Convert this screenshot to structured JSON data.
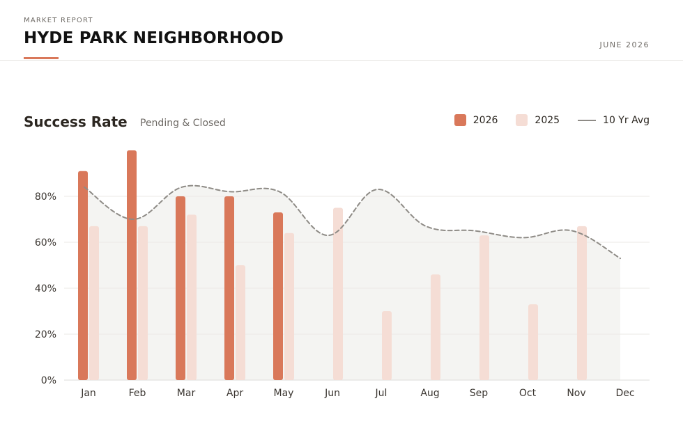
{
  "header": {
    "kicker": "MARKET REPORT",
    "title": "HYDE PARK NEIGHBORHOOD",
    "date": "JUNE 2026"
  },
  "chart_data": {
    "type": "bar",
    "title": "Success Rate",
    "subtitle": "Pending & Closed",
    "categories": [
      "Jan",
      "Feb",
      "Mar",
      "Apr",
      "May",
      "Jun",
      "Jul",
      "Aug",
      "Sep",
      "Oct",
      "Nov",
      "Dec"
    ],
    "series": [
      {
        "name": "2026",
        "type": "bar",
        "color": "#d9785a",
        "values": [
          91,
          100,
          80,
          80,
          73,
          null,
          null,
          null,
          null,
          null,
          null,
          null
        ]
      },
      {
        "name": "2025",
        "type": "bar",
        "color": "#f5ddd5",
        "values": [
          67,
          67,
          72,
          50,
          64,
          75,
          30,
          46,
          63,
          33,
          67,
          null
        ]
      },
      {
        "name": "10 Yr Avg",
        "type": "line",
        "style": "dashed",
        "color": "#8e8b86",
        "values": [
          84,
          70,
          84,
          82,
          82,
          63,
          83,
          67,
          65,
          62,
          65,
          53
        ]
      }
    ],
    "y_ticks": [
      "0%",
      "20%",
      "40%",
      "60%",
      "80%"
    ],
    "ylim": [
      0,
      100
    ],
    "grid": true,
    "legend_position": "top-right"
  }
}
